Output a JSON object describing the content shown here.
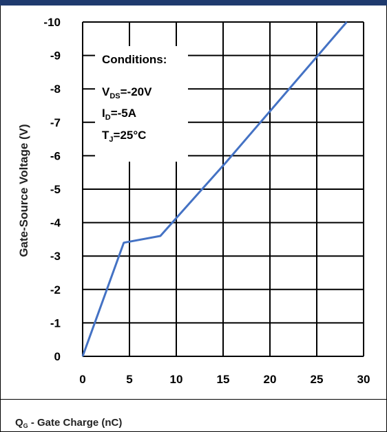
{
  "chart_data": {
    "type": "line",
    "xlabel": {
      "symbol": "Q",
      "sub": "G",
      "rest": " - Gate Charge (nC)"
    },
    "ylabel": "Gate-Source Voltage (V)",
    "xlim": [
      0,
      30
    ],
    "ylim": [
      0,
      -10
    ],
    "x_ticks": [
      0,
      5,
      10,
      15,
      20,
      25,
      30
    ],
    "x_tick_labels": [
      "0",
      "5",
      "10",
      "15",
      "20",
      "25",
      "30"
    ],
    "y_ticks": [
      0,
      -1,
      -2,
      -3,
      -4,
      -5,
      -6,
      -7,
      -8,
      -9,
      -10
    ],
    "y_tick_labels": [
      "0",
      "-1",
      "-2",
      "-3",
      "-4",
      "-5",
      "-6",
      "-7",
      "-8",
      "-9",
      "-10"
    ],
    "grid": true,
    "series": [
      {
        "color": "#4472c4",
        "x": [
          0,
          4.4,
          8.3,
          15.3,
          28.2
        ],
        "y": [
          0,
          -3.4,
          -3.6,
          -5.8,
          -10
        ]
      }
    ],
    "conditions": {
      "title": "Conditions:",
      "lines": [
        {
          "main": "V",
          "sub": "DS",
          "rest": "=-20V"
        },
        {
          "main": "I",
          "sub": "D",
          "rest": "=-5A"
        },
        {
          "main": "T",
          "sub": "J",
          "rest": "=25°C"
        }
      ]
    }
  }
}
